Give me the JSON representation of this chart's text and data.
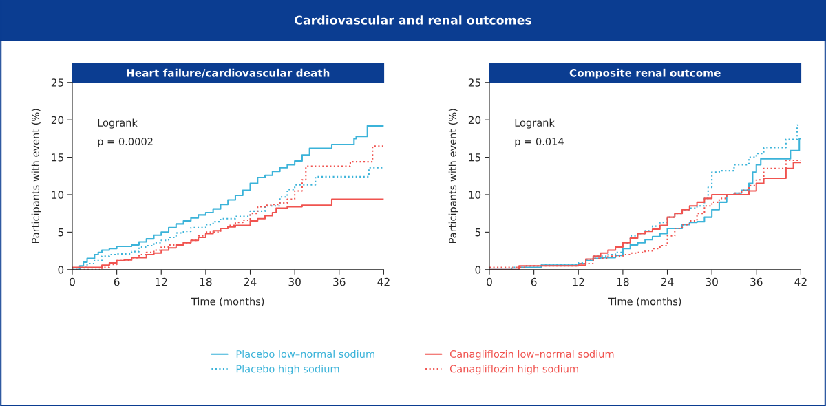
{
  "chart_data": [
    {
      "type": "other",
      "title": "Cardiovascular and renal outcomes"
    },
    {
      "type": "step",
      "title": "Heart failure/cardiovascular death",
      "xlabel": "Time (months)",
      "ylabel": "Participants with event (%)",
      "xlim": [
        0,
        42
      ],
      "xticks": [
        0,
        6,
        12,
        18,
        24,
        30,
        36,
        42
      ],
      "ylim": [
        0,
        25
      ],
      "yticks": [
        0,
        5,
        10,
        15,
        20,
        25
      ],
      "grid": false,
      "annotations": [
        "Logrank",
        "p = 0.0002"
      ],
      "legend": "bottom",
      "series": [
        {
          "name": "Placebo low–normal sodium",
          "color": "#3bb3d9",
          "line_style": "solid",
          "x": [
            0,
            1,
            1.5,
            2,
            3,
            3.5,
            4,
            5,
            6,
            8,
            9,
            10,
            11,
            12,
            13,
            14,
            15,
            16,
            17,
            18,
            19,
            20,
            21,
            22,
            23,
            24,
            25,
            26,
            27,
            28,
            29,
            30,
            31,
            32,
            35,
            38,
            38.3,
            39.8,
            42
          ],
          "values": [
            0,
            0.5,
            1,
            1.5,
            2,
            2.3,
            2.6,
            2.8,
            3.1,
            3.3,
            3.7,
            4.1,
            4.6,
            5.0,
            5.6,
            6.1,
            6.5,
            6.9,
            7.3,
            7.6,
            8.1,
            8.7,
            9.3,
            9.9,
            10.6,
            11.5,
            12.3,
            12.6,
            13.1,
            13.6,
            14.0,
            14.5,
            15.3,
            16.2,
            16.7,
            17.5,
            17.8,
            19.2,
            19.2
          ]
        },
        {
          "name": "Placebo high sodium",
          "color": "#3bb3d9",
          "line_style": "dotted",
          "x": [
            0,
            1,
            2,
            3,
            4,
            5,
            6,
            8,
            9,
            10,
            11,
            12,
            13,
            14,
            15,
            16,
            18,
            19,
            20,
            22,
            24,
            26,
            28,
            29,
            30,
            32.8,
            40,
            42
          ],
          "values": [
            0,
            0.3,
            0.8,
            1.2,
            1.8,
            2,
            2.1,
            2.4,
            3,
            3.2,
            3.6,
            3.9,
            4.3,
            4.9,
            5.1,
            5.6,
            6.0,
            6.4,
            6.8,
            7.1,
            7.8,
            8.5,
            9.7,
            10.7,
            11.3,
            12.4,
            13.6,
            13.6
          ]
        },
        {
          "name": "Canagliflozin low–normal sodium",
          "color": "#f0534f",
          "line_style": "solid",
          "x": [
            0,
            3,
            4,
            5,
            6,
            7,
            8,
            10,
            11,
            12,
            13,
            14,
            15,
            16,
            17,
            18,
            19,
            20,
            21,
            22,
            24,
            25,
            26,
            27,
            27.5,
            29,
            31,
            35,
            42
          ],
          "values": [
            0.3,
            0.3,
            0.6,
            0.9,
            1.2,
            1.3,
            1.6,
            2,
            2.2,
            2.6,
            2.9,
            3.3,
            3.6,
            3.9,
            4.3,
            4.8,
            5.2,
            5.5,
            5.7,
            5.9,
            6.5,
            6.8,
            7.2,
            7.6,
            8.2,
            8.4,
            8.6,
            9.4,
            9.4
          ]
        },
        {
          "name": "Canagliflozin high sodium",
          "color": "#f0534f",
          "line_style": "dotted",
          "x": [
            0,
            4,
            5,
            6,
            8,
            9,
            10,
            11,
            12,
            13,
            15,
            16,
            17,
            18,
            20,
            21,
            22,
            23,
            24,
            25,
            26,
            27,
            28,
            29,
            30,
            31,
            31.5,
            37.5,
            40.5,
            42
          ],
          "values": [
            0,
            0.3,
            0.7,
            1.2,
            1.6,
            2.0,
            2.3,
            2.6,
            3,
            3.3,
            3.6,
            3.9,
            4.5,
            5.0,
            5.5,
            5.9,
            6.3,
            6.6,
            7.5,
            8.4,
            8.6,
            8.7,
            8.9,
            9.4,
            10.5,
            12,
            13.8,
            14.4,
            16.5,
            16.5
          ]
        }
      ]
    },
    {
      "type": "step",
      "title": "Composite renal outcome",
      "xlabel": "Time (months)",
      "ylabel": "Participants with event (%)",
      "xlim": [
        0,
        42
      ],
      "xticks": [
        0,
        6,
        12,
        18,
        24,
        30,
        36,
        42
      ],
      "ylim": [
        0,
        25
      ],
      "yticks": [
        0,
        5,
        10,
        15,
        20,
        25
      ],
      "grid": false,
      "annotations": [
        "Logrank",
        "p = 0.014"
      ],
      "series": [
        {
          "color": "#3bb3d9",
          "line_style": "solid",
          "x": [
            0,
            4,
            7,
            12,
            13,
            14,
            15,
            17,
            18,
            19,
            20,
            21,
            22,
            23,
            24,
            26,
            27,
            28,
            29,
            30,
            31,
            32,
            33,
            34,
            35,
            35.5,
            36,
            36.6,
            40.6,
            41.8,
            42
          ],
          "values": [
            0,
            0.3,
            0.6,
            0.8,
            1.2,
            1.5,
            1.6,
            1.9,
            2.8,
            3.3,
            3.6,
            4.0,
            4.4,
            4.8,
            5.5,
            6.0,
            6.3,
            6.4,
            7.0,
            8.0,
            9.0,
            10.0,
            10.2,
            10.6,
            11.5,
            13,
            14,
            14.8,
            15.9,
            17.5,
            17.5
          ]
        },
        {
          "color": "#3bb3d9",
          "line_style": "dotted",
          "x": [
            0,
            3,
            7,
            12,
            13,
            14,
            16,
            17,
            18,
            19,
            20,
            21,
            22,
            23,
            24,
            25,
            26,
            27,
            28,
            29,
            29.5,
            30,
            31,
            33,
            35,
            36,
            37,
            40,
            41.5,
            42
          ],
          "values": [
            0,
            0.3,
            0.7,
            0.9,
            1.3,
            1.8,
            2.0,
            2.3,
            3.5,
            4.5,
            4.8,
            5.2,
            5.8,
            6.3,
            7.0,
            7.5,
            8.0,
            8.2,
            8.5,
            9.5,
            11,
            13,
            13.2,
            14,
            15,
            15.5,
            16.3,
            17.4,
            19.3,
            19.3
          ]
        },
        {
          "color": "#f0534f",
          "line_style": "solid",
          "x": [
            0,
            4,
            12,
            13,
            14,
            15,
            16,
            17,
            18,
            19,
            20,
            21,
            22,
            23,
            24,
            25,
            26,
            27,
            28,
            29,
            30,
            34,
            35,
            36,
            37,
            40,
            41,
            42
          ],
          "values": [
            0,
            0.5,
            0.6,
            1.4,
            1.8,
            2.2,
            2.6,
            3.0,
            3.6,
            4.2,
            4.8,
            5.1,
            5.4,
            5.9,
            7.0,
            7.5,
            8.0,
            8.5,
            9.0,
            9.5,
            10.0,
            10.0,
            10.5,
            11.5,
            12.2,
            13.5,
            14.3,
            14.3
          ]
        },
        {
          "color": "#f0534f",
          "line_style": "dotted",
          "x": [
            0,
            1,
            5,
            12,
            14,
            16,
            18,
            19,
            20,
            21,
            22,
            23,
            24,
            25,
            26,
            27,
            28,
            29,
            30,
            31,
            32,
            33,
            34,
            35,
            36,
            37,
            40,
            42
          ],
          "values": [
            0.3,
            0.3,
            0.5,
            0.8,
            1.5,
            1.8,
            2.0,
            2.2,
            2.3,
            2.5,
            2.8,
            3.2,
            4.5,
            5.5,
            6.0,
            6.5,
            7.5,
            8.5,
            9.0,
            9.5,
            10.0,
            10.2,
            10.6,
            11.2,
            12.0,
            13.5,
            14.6,
            14.6
          ]
        }
      ]
    }
  ]
}
